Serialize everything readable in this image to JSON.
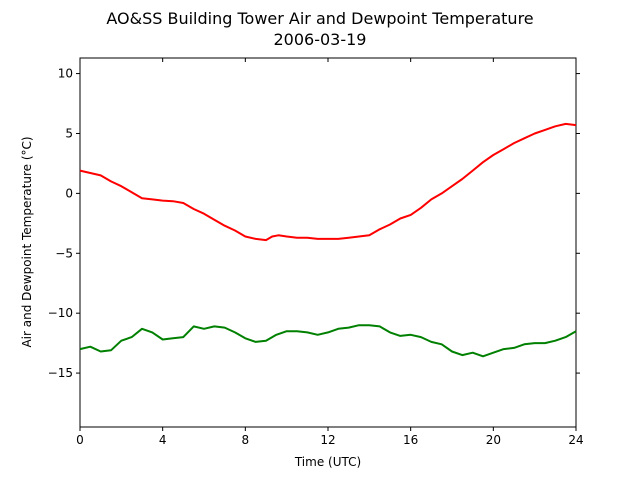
{
  "chart_data": {
    "type": "line",
    "title": "AO&SS Building Tower Air and Dewpoint Temperature",
    "subtitle": "2006-03-19",
    "xlabel": "Time (UTC)",
    "ylabel": "Air and Dewpoint Temperature (°C)",
    "xlim": [
      0,
      24
    ],
    "ylim": [
      -19.5,
      11.3
    ],
    "xticks": [
      0,
      4,
      8,
      12,
      16,
      20,
      24
    ],
    "xtick_labels": [
      "0",
      "4",
      "8",
      "12",
      "16",
      "20",
      "24"
    ],
    "yticks": [
      -15,
      -10,
      -5,
      0,
      5,
      10
    ],
    "ytick_labels": [
      "−15",
      "−10",
      "−5",
      "0",
      "5",
      "10"
    ],
    "grid": false,
    "series": [
      {
        "color": "#ff0000",
        "x": [
          0,
          0.5,
          1,
          1.5,
          2,
          2.5,
          3,
          3.5,
          4,
          4.5,
          5,
          5.5,
          6,
          6.5,
          7,
          7.5,
          8,
          8.5,
          9,
          9.3,
          9.6,
          10,
          10.5,
          11,
          11.5,
          12,
          12.5,
          13,
          13.5,
          14,
          14.5,
          15,
          15.5,
          16,
          16.5,
          17,
          17.5,
          18,
          18.5,
          19,
          19.5,
          20,
          20.5,
          21,
          21.5,
          22,
          22.5,
          23,
          23.5,
          24
        ],
        "y": [
          1.9,
          1.7,
          1.5,
          1.0,
          0.6,
          0.1,
          -0.4,
          -0.5,
          -0.6,
          -0.65,
          -0.8,
          -1.3,
          -1.7,
          -2.2,
          -2.7,
          -3.1,
          -3.6,
          -3.8,
          -3.9,
          -3.6,
          -3.5,
          -3.6,
          -3.7,
          -3.7,
          -3.8,
          -3.8,
          -3.8,
          -3.7,
          -3.6,
          -3.5,
          -3.0,
          -2.6,
          -2.1,
          -1.8,
          -1.2,
          -0.5,
          0.0,
          0.6,
          1.2,
          1.9,
          2.6,
          3.2,
          3.7,
          4.2,
          4.6,
          5.0,
          5.3,
          5.6,
          5.8,
          5.7
        ]
      },
      {
        "color": "#008000",
        "x": [
          0,
          0.5,
          1,
          1.5,
          2,
          2.5,
          3,
          3.5,
          4,
          4.5,
          5,
          5.5,
          6,
          6.5,
          7,
          7.5,
          8,
          8.5,
          9,
          9.5,
          10,
          10.5,
          11,
          11.5,
          12,
          12.5,
          13,
          13.5,
          14,
          14.5,
          15,
          15.5,
          16,
          16.5,
          17,
          17.5,
          18,
          18.5,
          19,
          19.5,
          20,
          20.5,
          21,
          21.5,
          22,
          22.5,
          23,
          23.5,
          24
        ],
        "y": [
          -13.0,
          -12.8,
          -13.2,
          -13.1,
          -12.3,
          -12.0,
          -11.3,
          -11.6,
          -12.2,
          -12.1,
          -12.0,
          -11.1,
          -11.3,
          -11.1,
          -11.2,
          -11.6,
          -12.1,
          -12.4,
          -12.3,
          -11.8,
          -11.5,
          -11.5,
          -11.6,
          -11.8,
          -11.6,
          -11.3,
          -11.2,
          -11.0,
          -11.0,
          -11.1,
          -11.6,
          -11.9,
          -11.8,
          -12.0,
          -12.4,
          -12.6,
          -13.2,
          -13.5,
          -13.3,
          -13.6,
          -13.3,
          -13.0,
          -12.9,
          -12.6,
          -12.5,
          -12.5,
          -12.3,
          -12.0,
          -11.5
        ]
      }
    ]
  }
}
